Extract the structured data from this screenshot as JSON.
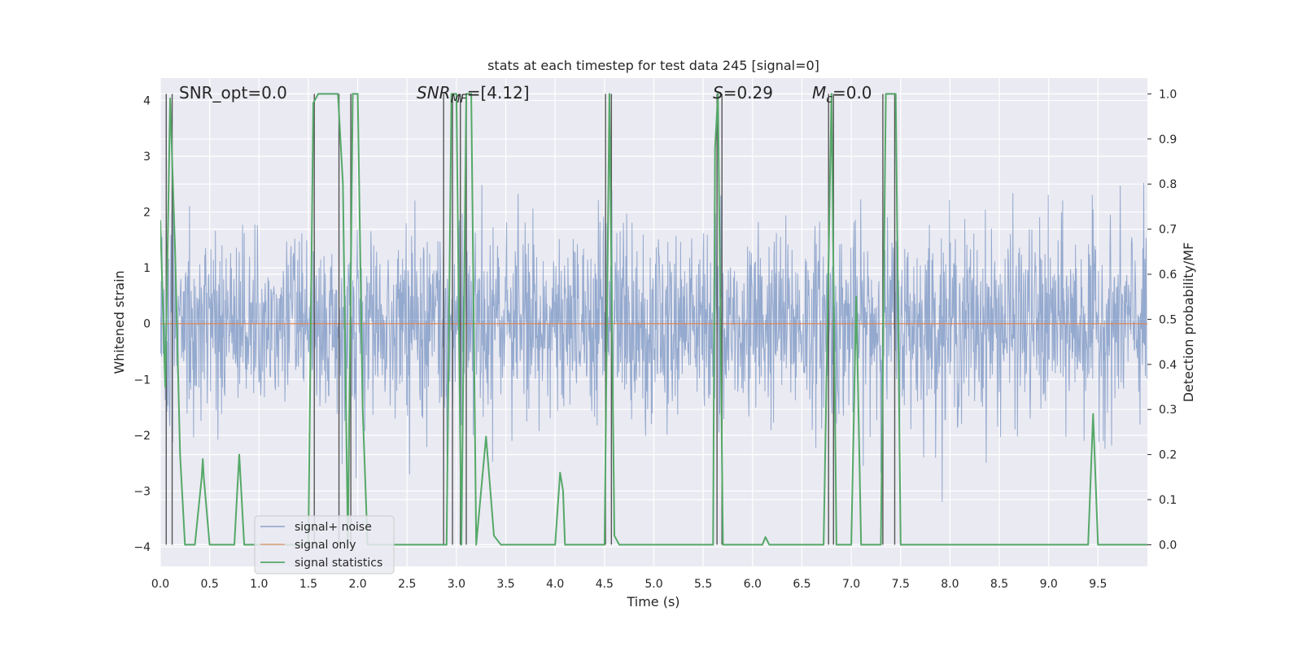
{
  "chart_data": {
    "type": "line",
    "title": "stats at each timestep for test data 245 [signal=0]",
    "xlabel": "Time (s)",
    "ylabel": "Whitened strain",
    "y2label": "Detection probability/MF",
    "xlim": [
      0.0,
      10.0
    ],
    "ylim": [
      -4.35,
      4.4
    ],
    "y2lim": [
      -0.048,
      1.035
    ],
    "grid": true,
    "legend_position": "lower-left",
    "x_ticks": [
      "0.0",
      "0.5",
      "1.0",
      "1.5",
      "2.0",
      "2.5",
      "3.0",
      "3.5",
      "4.0",
      "4.5",
      "5.0",
      "5.5",
      "6.0",
      "6.5",
      "7.0",
      "7.5",
      "8.0",
      "8.5",
      "9.0",
      "9.5"
    ],
    "y_ticks": [
      "4",
      "3",
      "2",
      "1",
      "0",
      "−1",
      "−2",
      "−3",
      "−4"
    ],
    "y2_ticks": [
      "1.0",
      "0.9",
      "0.8",
      "0.7",
      "0.6",
      "0.5",
      "0.4",
      "0.3",
      "0.2",
      "0.1",
      "0.0"
    ],
    "annotations": {
      "snr_opt": "SNR_opt=0.0",
      "snr_mf_main": "SNR",
      "snr_mf_sub": "MF",
      "snr_mf_value": "=[4.12]",
      "s_main": "S",
      "s_value": "=0.29",
      "mc_main": "M",
      "mc_sub": "c",
      "mc_value": "=0.0"
    },
    "series": [
      {
        "name": "signal+ noise",
        "color": "#4c72b0",
        "axis": "left",
        "note": "whitened noise, approx. amplitude range -4 to 4"
      },
      {
        "name": "signal only",
        "color": "#dd8452",
        "axis": "left",
        "x": [
          0.0,
          10.0
        ],
        "values": [
          0.0,
          0.0
        ]
      },
      {
        "name": "signal statistics",
        "color": "#55a868",
        "axis": "right",
        "x": [
          0.0,
          0.05,
          0.1,
          0.15,
          0.2,
          0.25,
          0.35,
          0.42,
          0.43,
          0.44,
          0.5,
          0.6,
          0.75,
          0.8,
          0.85,
          0.9,
          1.0,
          1.5,
          1.55,
          1.6,
          1.65,
          1.8,
          1.85,
          1.9,
          1.95,
          2.0,
          2.05,
          2.1,
          2.15,
          2.2,
          2.3,
          2.9,
          2.95,
          3.0,
          3.05,
          3.1,
          3.15,
          3.2,
          3.3,
          3.38,
          3.45,
          3.5,
          4.0,
          4.05,
          4.08,
          4.1,
          4.15,
          4.2,
          4.5,
          4.55,
          4.6,
          4.65,
          4.7,
          5.0,
          5.4,
          5.6,
          5.62,
          5.65,
          5.7,
          5.75,
          6.0,
          6.1,
          6.13,
          6.17,
          6.2,
          6.7,
          6.72,
          6.8,
          6.85,
          6.9,
          7.0,
          7.05,
          7.1,
          7.15,
          7.3,
          7.35,
          7.4,
          7.45,
          7.5,
          7.55,
          8.0,
          9.0,
          9.4,
          9.45,
          9.5,
          9.6,
          10.0
        ],
        "values": [
          0.72,
          0.35,
          0.99,
          0.65,
          0.2,
          0.0,
          0.0,
          0.15,
          0.19,
          0.15,
          0.0,
          0.0,
          0.0,
          0.2,
          0.0,
          0.0,
          0.0,
          0.0,
          0.98,
          1.0,
          1.0,
          1.0,
          0.8,
          0.0,
          1.0,
          1.0,
          0.3,
          0.0,
          0.0,
          0.0,
          0.0,
          0.0,
          1.0,
          1.0,
          0.0,
          1.0,
          1.0,
          0.0,
          0.24,
          0.02,
          0.0,
          0.0,
          0.0,
          0.16,
          0.12,
          0.0,
          0.0,
          0.0,
          0.0,
          1.0,
          0.02,
          0.0,
          0.0,
          0.0,
          0.0,
          0.0,
          0.88,
          1.0,
          0.0,
          0.0,
          0.0,
          0.0,
          0.017,
          0.0,
          0.0,
          0.0,
          0.0,
          1.0,
          0.0,
          0.0,
          0.0,
          0.55,
          0.0,
          0.0,
          0.0,
          1.0,
          1.0,
          1.0,
          0.0,
          0.0,
          0.0,
          0.0,
          0.0,
          0.29,
          0.0,
          0.0,
          0.0
        ]
      },
      {
        "name": "",
        "color": "#555555",
        "axis": "right",
        "style": "vertical-lines",
        "x": [
          0.06,
          0.12,
          1.56,
          1.81,
          1.93,
          2.87,
          2.96,
          3.04,
          3.1,
          4.51,
          4.57,
          5.64,
          5.69,
          6.77,
          6.82,
          7.32,
          7.44
        ]
      }
    ]
  },
  "legend": {
    "items": [
      {
        "label": "signal+ noise",
        "color": "#4c72b0"
      },
      {
        "label": "signal only",
        "color": "#dd8452"
      },
      {
        "label": "signal statistics",
        "color": "#55a868"
      }
    ]
  }
}
